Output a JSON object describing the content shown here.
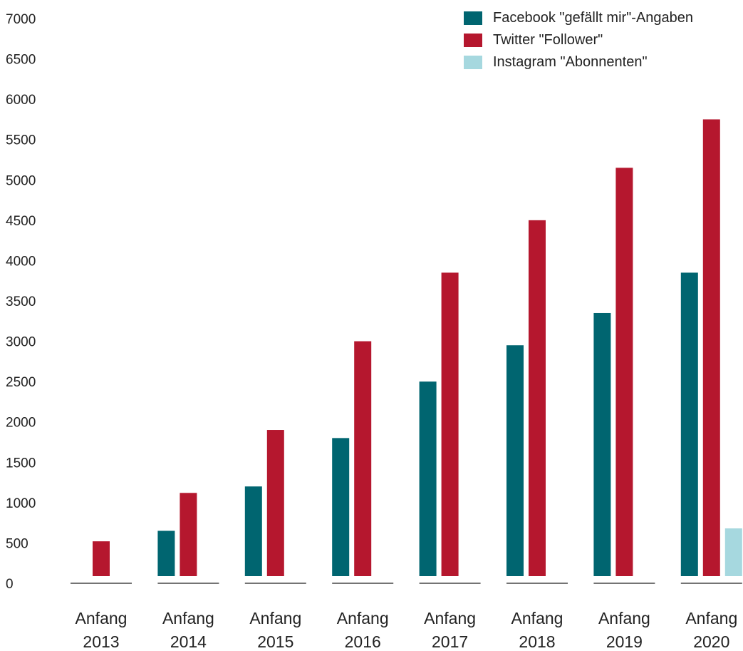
{
  "chart_data": {
    "type": "bar",
    "categories": [
      [
        "Anfang",
        "2013"
      ],
      [
        "Anfang",
        "2014"
      ],
      [
        "Anfang",
        "2015"
      ],
      [
        "Anfang",
        "2016"
      ],
      [
        "Anfang",
        "2017"
      ],
      [
        "Anfang",
        "2018"
      ],
      [
        "Anfang",
        "2019"
      ],
      [
        "Anfang",
        "2020"
      ]
    ],
    "y_ticks": [
      "0",
      "500",
      "1000",
      "1500",
      "2000",
      "2500",
      "3000",
      "3500",
      "4000",
      "4500",
      "5000",
      "5500",
      "6000",
      "6500",
      "7000"
    ],
    "ylim": [
      0,
      7000
    ],
    "grid": false,
    "legend_position": "top-right",
    "series": [
      {
        "name": "Facebook \"gefällt mir\"-Angaben",
        "color": "#006570",
        "values": [
          null,
          650,
          1200,
          1800,
          2500,
          2950,
          3350,
          3850
        ]
      },
      {
        "name": "Twitter \"Follower\"",
        "color": "#b5172e",
        "values": [
          520,
          1120,
          1900,
          3000,
          3850,
          4500,
          5150,
          5750
        ]
      },
      {
        "name": "Instagram \"Abonnenten\"",
        "color": "#a6d8df",
        "values": [
          null,
          null,
          null,
          null,
          null,
          null,
          null,
          680
        ]
      }
    ]
  }
}
